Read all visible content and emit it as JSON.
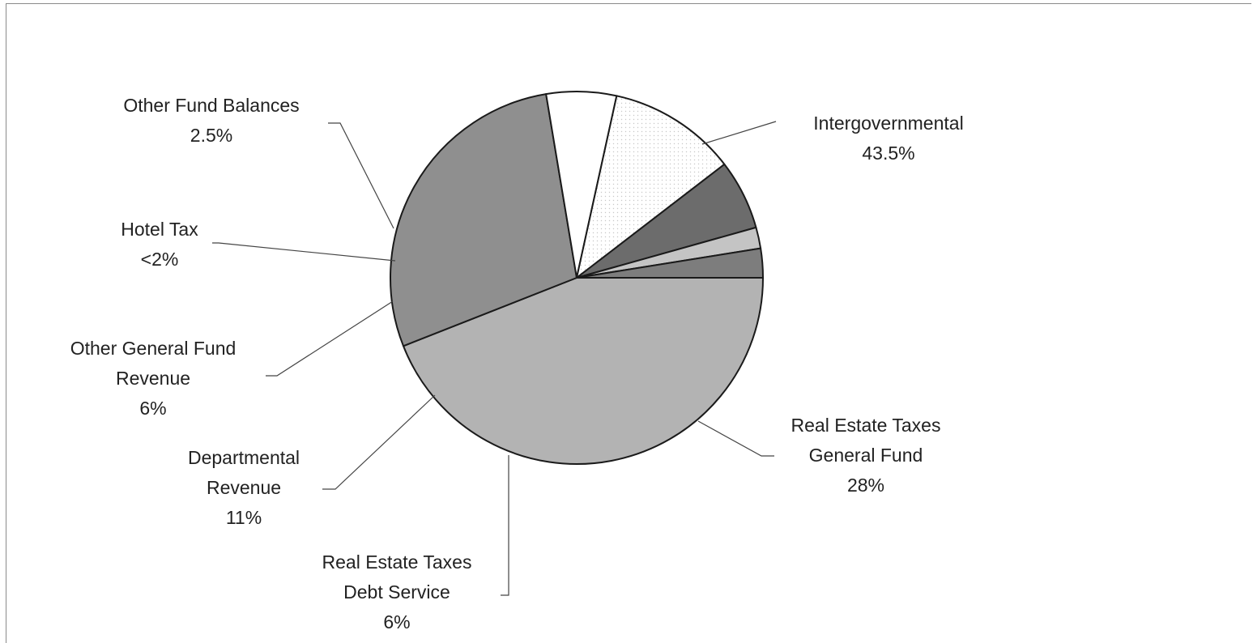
{
  "chart_data": {
    "type": "pie",
    "title": "",
    "slices": [
      {
        "label_lines": [
          "Intergovernmental"
        ],
        "pct_text": "43.5%",
        "value": 43.5,
        "color": "#b3b3b3"
      },
      {
        "label_lines": [
          "Real Estate Taxes",
          "General Fund"
        ],
        "pct_text": "28%",
        "value": 28,
        "color": "#8f8f8f"
      },
      {
        "label_lines": [
          "Real Estate Taxes",
          "Debt Service"
        ],
        "pct_text": "6%",
        "value": 6,
        "color": "#ffffff"
      },
      {
        "label_lines": [
          "Departmental",
          "Revenue"
        ],
        "pct_text": "11%",
        "value": 11,
        "color": "#f6f6f6"
      },
      {
        "label_lines": [
          "Other General Fund",
          "Revenue"
        ],
        "pct_text": "6%",
        "value": 6,
        "color": "#6c6c6c"
      },
      {
        "label_lines": [
          "Hotel Tax"
        ],
        "pct_text": "<2%",
        "value": 1.8,
        "color": "#c4c4c4"
      },
      {
        "label_lines": [
          "Other Fund Balances"
        ],
        "pct_text": "2.5%",
        "value": 2.5,
        "color": "#7d7d7d"
      }
    ],
    "colors": {
      "outline": "#1a1a1a",
      "leader": "#444444",
      "text": "#222222"
    }
  }
}
